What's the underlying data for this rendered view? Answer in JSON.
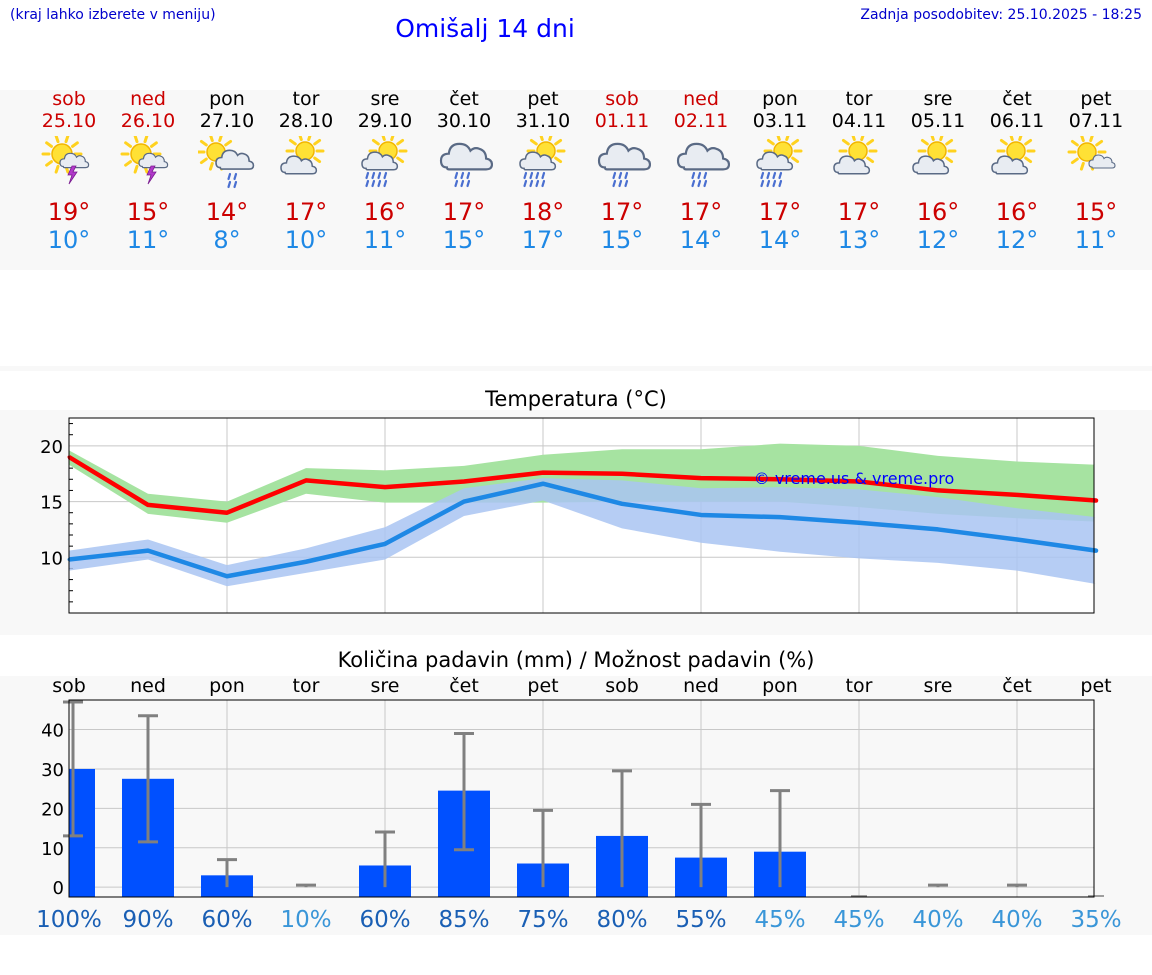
{
  "header": {
    "hint": "(kraj lahko izberete v meniju)",
    "title": "Omišalj 14 dni",
    "updated": "Zadnja posodobitev: 25.10.2025 - 18:25"
  },
  "days": [
    {
      "name": "sob",
      "date": "25.10",
      "icon": "sun-cloud-thunder-icon",
      "max": "19°",
      "min": "10°",
      "weekend": true
    },
    {
      "name": "ned",
      "date": "26.10",
      "icon": "sun-cloud-thunder-icon",
      "max": "15°",
      "min": "11°",
      "weekend": true
    },
    {
      "name": "pon",
      "date": "27.10",
      "icon": "sun-cloud-rain-icon",
      "max": "14°",
      "min": "8°",
      "weekend": false
    },
    {
      "name": "tor",
      "date": "28.10",
      "icon": "sun-cloud-icon",
      "max": "17°",
      "min": "10°",
      "weekend": false
    },
    {
      "name": "sre",
      "date": "29.10",
      "icon": "sun-cloud-heavy-rain-icon",
      "max": "16°",
      "min": "11°",
      "weekend": false
    },
    {
      "name": "čet",
      "date": "30.10",
      "icon": "cloud-rain-icon",
      "max": "17°",
      "min": "15°",
      "weekend": false
    },
    {
      "name": "pet",
      "date": "31.10",
      "icon": "sun-cloud-heavy-rain-icon",
      "max": "18°",
      "min": "17°",
      "weekend": false
    },
    {
      "name": "sob",
      "date": "01.11",
      "icon": "cloud-rain-icon",
      "max": "17°",
      "min": "15°",
      "weekend": true
    },
    {
      "name": "ned",
      "date": "02.11",
      "icon": "cloud-rain-icon",
      "max": "17°",
      "min": "14°",
      "weekend": true
    },
    {
      "name": "pon",
      "date": "03.11",
      "icon": "sun-cloud-heavy-rain-icon",
      "max": "17°",
      "min": "14°",
      "weekend": false
    },
    {
      "name": "tor",
      "date": "04.11",
      "icon": "sun-cloud-icon",
      "max": "17°",
      "min": "13°",
      "weekend": false
    },
    {
      "name": "sre",
      "date": "05.11",
      "icon": "sun-cloud-icon",
      "max": "16°",
      "min": "12°",
      "weekend": false
    },
    {
      "name": "čet",
      "date": "06.11",
      "icon": "sun-cloud-icon",
      "max": "16°",
      "min": "12°",
      "weekend": false
    },
    {
      "name": "pet",
      "date": "07.11",
      "icon": "sun-small-cloud-icon",
      "max": "15°",
      "min": "11°",
      "weekend": false
    }
  ],
  "colors": {
    "weekend": "#cc0000",
    "max_line": "#ff0000",
    "max_band": "#a6e3a1",
    "min_line": "#1e88e5",
    "min_band": "#a9c4f2",
    "precip_bar": "#0050ff",
    "error_bar": "#808080",
    "watermark": "#0000ff"
  },
  "chart_data": [
    {
      "type": "line",
      "title": "Temperatura (°C)",
      "watermark": "© vreme.us & vreme.pro",
      "x_days": 14,
      "ylim": [
        5,
        22.5
      ],
      "yticks": [
        10,
        15,
        20
      ],
      "grid": true,
      "series": [
        {
          "role": "max",
          "x": [
            0,
            1,
            2,
            3,
            4,
            5,
            6,
            7,
            8,
            9,
            10,
            11,
            12,
            13
          ],
          "values": [
            19,
            14.7,
            14,
            16.9,
            16.3,
            16.8,
            17.6,
            17.5,
            17.1,
            17,
            16.8,
            16,
            15.6,
            15.1
          ],
          "band_low": [
            18.3,
            13.9,
            13.1,
            15.7,
            14.9,
            14.9,
            14.9,
            15,
            15,
            15,
            14.5,
            13.9,
            13.5,
            13.2
          ],
          "band_high": [
            19.6,
            15.7,
            15,
            18,
            17.8,
            18.2,
            19.2,
            19.7,
            19.7,
            20.2,
            20,
            19.1,
            18.6,
            18.3
          ],
          "end_value": 15.1,
          "end_band": [
            13.2,
            18.3
          ]
        },
        {
          "role": "min",
          "x": [
            0,
            1,
            2,
            3,
            4,
            5,
            6,
            7,
            8,
            9,
            10,
            11,
            12,
            13
          ],
          "values": [
            9.8,
            10.6,
            8.3,
            9.6,
            11.2,
            15,
            16.6,
            14.8,
            13.8,
            13.6,
            13.1,
            12.5,
            11.6,
            10.6
          ],
          "band_low": [
            8.8,
            9.8,
            7.4,
            8.6,
            9.8,
            13.7,
            15.1,
            12.6,
            11.3,
            10.5,
            9.9,
            9.5,
            8.8,
            7.6
          ],
          "band_high": [
            10.6,
            11.6,
            9.3,
            10.8,
            12.7,
            16.2,
            17.1,
            16.9,
            16.2,
            16.3,
            16.1,
            15.4,
            14.4,
            13.6
          ],
          "end_value": 10.6,
          "end_band": [
            7.6,
            13.6
          ]
        }
      ]
    },
    {
      "type": "bar",
      "title": "Količina padavin (mm) / Možnost padavin (%)",
      "categories": [
        "sob",
        "ned",
        "pon",
        "tor",
        "sre",
        "čet",
        "pet",
        "sob",
        "ned",
        "pon",
        "tor",
        "sre",
        "čet",
        "pet"
      ],
      "values": [
        30,
        27.5,
        3,
        0,
        5.5,
        24.5,
        6,
        13,
        7.5,
        9,
        0,
        0,
        0,
        0
      ],
      "error_low": [
        13,
        11.5,
        0,
        0,
        0,
        9.5,
        0,
        0,
        0,
        0,
        0,
        0,
        0,
        0
      ],
      "error_high": [
        47,
        43.5,
        7,
        0.5,
        14,
        39,
        19.5,
        29.5,
        21,
        24.5,
        0,
        0.5,
        0.5,
        0
      ],
      "probability": [
        "100%",
        "90%",
        "60%",
        "10%",
        "60%",
        "85%",
        "75%",
        "80%",
        "55%",
        "45%",
        "45%",
        "40%",
        "40%",
        "35%"
      ],
      "ylim": [
        -2.5,
        47.5
      ],
      "yticks": [
        0,
        10,
        20,
        30,
        40
      ],
      "grid": true
    }
  ]
}
